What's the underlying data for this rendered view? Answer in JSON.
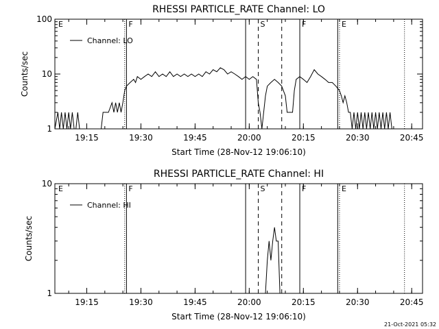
{
  "footer": {
    "timestamp": "21-Oct-2021 05:32"
  },
  "chart_data": [
    {
      "type": "line",
      "title": "RHESSI PARTICLE_RATE Channel: LO",
      "xlabel": "Start Time (28-Nov-12 19:06:10)",
      "ylabel": "Counts/sec",
      "yscale": "log",
      "ylim": [
        1,
        100
      ],
      "yticks": [
        1,
        10,
        100
      ],
      "ytick_labels": [
        "1",
        "10",
        "100"
      ],
      "xlim": [
        "19:06:10",
        "20:48:00"
      ],
      "xticks": [
        "19:15",
        "19:30",
        "19:45",
        "20:00",
        "20:15",
        "20:30",
        "20:45"
      ],
      "legend": "top-left",
      "series": [
        {
          "name": "Channel: LO",
          "points": [
            [
              "19:06:10",
              1
            ],
            [
              "19:07:00",
              2
            ],
            [
              "19:07:30",
              1
            ],
            [
              "19:08:00",
              2
            ],
            [
              "19:08:30",
              1
            ],
            [
              "19:09:00",
              2
            ],
            [
              "19:09:30",
              1
            ],
            [
              "19:10:00",
              2
            ],
            [
              "19:10:30",
              1
            ],
            [
              "19:11:00",
              2
            ],
            [
              "19:11:30",
              1
            ],
            [
              "19:12:00",
              1
            ],
            [
              "19:12:30",
              2
            ],
            [
              "19:13:00",
              1
            ],
            [
              "19:13:30",
              1
            ],
            [
              "19:14:00",
              1
            ],
            [
              "19:14:30",
              1
            ],
            [
              "19:15:00",
              1
            ],
            [
              "19:15:30",
              1
            ],
            [
              "19:16:00",
              1
            ],
            [
              "19:16:30",
              1
            ],
            [
              "19:17:00",
              1
            ],
            [
              "19:17:30",
              1
            ],
            [
              "19:18:00",
              1
            ],
            [
              "19:18:30",
              1
            ],
            [
              "19:19:00",
              1
            ],
            [
              "19:19:30",
              2
            ],
            [
              "19:20:00",
              2
            ],
            [
              "19:21:00",
              2
            ],
            [
              "19:22:00",
              3
            ],
            [
              "19:22:30",
              2
            ],
            [
              "19:23:00",
              3
            ],
            [
              "19:23:30",
              2
            ],
            [
              "19:24:00",
              3
            ],
            [
              "19:24:30",
              2
            ],
            [
              "19:25:00",
              3
            ],
            [
              "19:25:30",
              5
            ],
            [
              "19:26:00",
              6
            ],
            [
              "19:27:00",
              7
            ],
            [
              "19:28:00",
              8
            ],
            [
              "19:28:30",
              7
            ],
            [
              "19:29:00",
              9
            ],
            [
              "19:30:00",
              8
            ],
            [
              "19:31:00",
              9
            ],
            [
              "19:32:00",
              10
            ],
            [
              "19:33:00",
              9
            ],
            [
              "19:34:00",
              11
            ],
            [
              "19:35:00",
              9
            ],
            [
              "19:36:00",
              10
            ],
            [
              "19:37:00",
              9
            ],
            [
              "19:38:00",
              11
            ],
            [
              "19:39:00",
              9
            ],
            [
              "19:40:00",
              10
            ],
            [
              "19:41:00",
              9
            ],
            [
              "19:42:00",
              10
            ],
            [
              "19:43:00",
              9
            ],
            [
              "19:44:00",
              10
            ],
            [
              "19:45:00",
              9
            ],
            [
              "19:46:00",
              10
            ],
            [
              "19:47:00",
              9
            ],
            [
              "19:48:00",
              11
            ],
            [
              "19:49:00",
              10
            ],
            [
              "19:50:00",
              12
            ],
            [
              "19:51:00",
              11
            ],
            [
              "19:52:00",
              13
            ],
            [
              "19:53:00",
              12
            ],
            [
              "19:54:00",
              10
            ],
            [
              "19:55:00",
              11
            ],
            [
              "19:56:00",
              10
            ],
            [
              "19:57:00",
              9
            ],
            [
              "19:58:00",
              8
            ],
            [
              "19:59:00",
              9
            ],
            [
              "20:00:00",
              8
            ],
            [
              "20:01:00",
              9
            ],
            [
              "20:02:00",
              8
            ],
            [
              "20:02:30",
              3
            ],
            [
              "20:03:00",
              2
            ],
            [
              "20:03:30",
              1
            ],
            [
              "20:04:00",
              2
            ],
            [
              "20:04:30",
              4
            ],
            [
              "20:05:00",
              6
            ],
            [
              "20:06:00",
              7
            ],
            [
              "20:07:00",
              8
            ],
            [
              "20:08:00",
              7
            ],
            [
              "20:09:00",
              6
            ],
            [
              "20:10:00",
              4
            ],
            [
              "20:10:30",
              2
            ],
            [
              "20:11:00",
              2
            ],
            [
              "20:12:00",
              2
            ],
            [
              "20:12:30",
              5
            ],
            [
              "20:13:00",
              8
            ],
            [
              "20:14:00",
              9
            ],
            [
              "20:15:00",
              8
            ],
            [
              "20:16:00",
              7
            ],
            [
              "20:17:00",
              9
            ],
            [
              "20:18:00",
              12
            ],
            [
              "20:19:00",
              10
            ],
            [
              "20:20:00",
              9
            ],
            [
              "20:21:00",
              8
            ],
            [
              "20:22:00",
              7
            ],
            [
              "20:23:00",
              7
            ],
            [
              "20:24:00",
              6
            ],
            [
              "20:25:00",
              5
            ],
            [
              "20:25:30",
              4
            ],
            [
              "20:26:00",
              3
            ],
            [
              "20:26:30",
              4
            ],
            [
              "20:27:00",
              3
            ],
            [
              "20:27:30",
              2
            ],
            [
              "20:28:00",
              2
            ],
            [
              "20:28:30",
              1
            ],
            [
              "20:29:00",
              2
            ],
            [
              "20:29:30",
              1
            ],
            [
              "20:30:00",
              2
            ],
            [
              "20:30:30",
              1
            ],
            [
              "20:31:00",
              2
            ],
            [
              "20:31:30",
              1
            ],
            [
              "20:32:00",
              2
            ],
            [
              "20:32:30",
              1
            ],
            [
              "20:33:00",
              2
            ],
            [
              "20:33:30",
              1
            ],
            [
              "20:34:00",
              2
            ],
            [
              "20:34:30",
              1
            ],
            [
              "20:35:00",
              2
            ],
            [
              "20:35:30",
              1
            ],
            [
              "20:36:00",
              2
            ],
            [
              "20:36:30",
              1
            ],
            [
              "20:37:00",
              2
            ],
            [
              "20:37:30",
              1
            ],
            [
              "20:38:00",
              2
            ],
            [
              "20:38:30",
              1
            ],
            [
              "20:39:00",
              2
            ],
            [
              "20:39:30",
              1
            ],
            [
              "20:40:00",
              1
            ]
          ]
        }
      ],
      "markers": [
        {
          "time": "19:25:30",
          "style": "dotted",
          "label": ""
        },
        {
          "time": "19:26:00",
          "style": "solid",
          "label": "F"
        },
        {
          "time": "19:06:10",
          "style": "none",
          "label": "E"
        },
        {
          "time": "19:59:00",
          "style": "solid",
          "label": ""
        },
        {
          "time": "20:02:30",
          "style": "dashed",
          "label": "S"
        },
        {
          "time": "20:09:00",
          "style": "dashed",
          "label": ""
        },
        {
          "time": "20:14:00",
          "style": "solid",
          "label": "F"
        },
        {
          "time": "20:24:30",
          "style": "solid",
          "label": ""
        },
        {
          "time": "20:25:00",
          "style": "dotted",
          "label": "E"
        },
        {
          "time": "20:43:00",
          "style": "dotted",
          "label": ""
        }
      ]
    },
    {
      "type": "line",
      "title": "RHESSI PARTICLE_RATE Channel: HI",
      "xlabel": "Start Time (28-Nov-12 19:06:10)",
      "ylabel": "Counts/sec",
      "yscale": "log",
      "ylim": [
        1,
        10
      ],
      "yticks": [
        1,
        10
      ],
      "ytick_labels": [
        "1",
        "10"
      ],
      "xlim": [
        "19:06:10",
        "20:48:00"
      ],
      "xticks": [
        "19:15",
        "19:30",
        "19:45",
        "20:00",
        "20:15",
        "20:30",
        "20:45"
      ],
      "legend": "top-left",
      "series": [
        {
          "name": "Channel: HI",
          "points": [
            [
              "20:04:30",
              1
            ],
            [
              "20:05:00",
              2
            ],
            [
              "20:05:30",
              3
            ],
            [
              "20:06:00",
              2
            ],
            [
              "20:06:30",
              3
            ],
            [
              "20:07:00",
              4
            ],
            [
              "20:07:30",
              3
            ],
            [
              "20:08:00",
              3
            ],
            [
              "20:08:30",
              1
            ]
          ]
        }
      ],
      "markers": [
        {
          "time": "19:25:30",
          "style": "dotted",
          "label": ""
        },
        {
          "time": "19:26:00",
          "style": "solid",
          "label": "F"
        },
        {
          "time": "19:06:10",
          "style": "none",
          "label": "E"
        },
        {
          "time": "19:59:00",
          "style": "solid",
          "label": ""
        },
        {
          "time": "20:02:30",
          "style": "dashed",
          "label": "S"
        },
        {
          "time": "20:09:00",
          "style": "dashed",
          "label": ""
        },
        {
          "time": "20:14:00",
          "style": "solid",
          "label": "F"
        },
        {
          "time": "20:24:30",
          "style": "solid",
          "label": ""
        },
        {
          "time": "20:25:00",
          "style": "dotted",
          "label": "E"
        },
        {
          "time": "20:43:00",
          "style": "dotted",
          "label": ""
        }
      ]
    }
  ]
}
